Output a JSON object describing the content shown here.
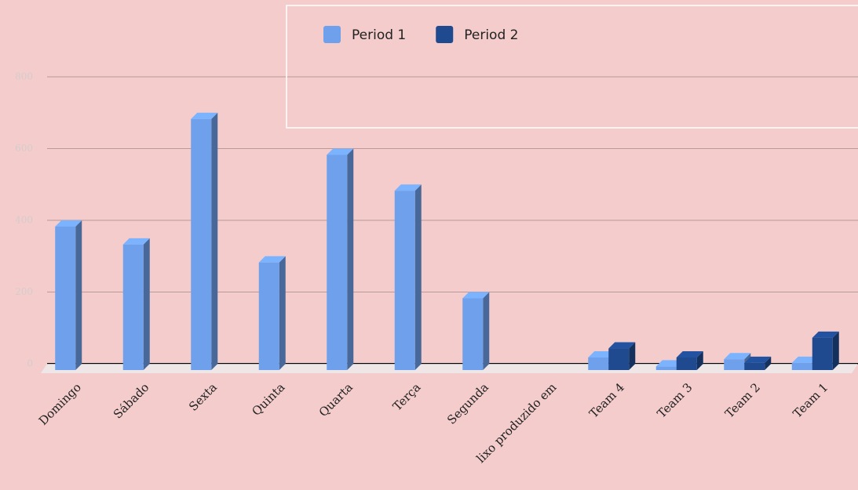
{
  "chart_data": {
    "type": "bar",
    "categories": [
      "Domingo",
      "Sábado",
      "Sexta",
      "Quinta",
      "Quarta",
      "Terça",
      "Segunda",
      "lixo produzido em",
      "Team 4",
      "Team 3",
      "Team 2",
      "Team 1"
    ],
    "series": [
      {
        "name": "Period 1",
        "color": "#6fa0ec",
        "values": [
          400,
          350,
          700,
          300,
          600,
          500,
          200,
          null,
          35,
          10,
          30,
          20
        ]
      },
      {
        "name": "Period 2",
        "color": "#1f4a8f",
        "values": [
          null,
          null,
          null,
          null,
          null,
          null,
          null,
          null,
          60,
          35,
          20,
          90
        ]
      }
    ],
    "ylim": [
      0,
      800
    ],
    "yticks": [
      0,
      200,
      400,
      600,
      800
    ],
    "grid": true
  }
}
